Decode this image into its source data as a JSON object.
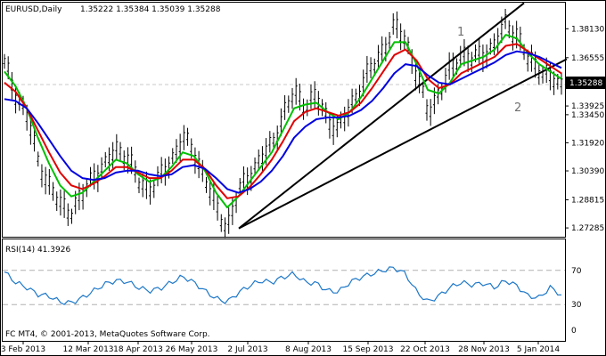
{
  "header": {
    "symbol": "EURUSD,Daily",
    "ohlc": "1.35222 1.35384 1.35039 1.35288"
  },
  "rsi": {
    "title": "RSI(14) 41.3926",
    "levels": [
      "70",
      "30",
      "0"
    ]
  },
  "footer": {
    "copyright": "FC MT4, © 2001-2013, MetaQuotes Software Corp."
  },
  "price_axis": {
    "ticks": [
      "1.38130",
      "1.36555",
      "1.33925",
      "1.33450",
      "1.31920",
      "1.30390",
      "1.28815",
      "1.27285"
    ],
    "current_price": "1.35288"
  },
  "annotations": {
    "wave_1": "1",
    "wave_2": "2"
  },
  "colors": {
    "price_bars": "#000000",
    "ma_green": "#00c000",
    "ma_red": "#e00000",
    "ma_blue": "#0000e0",
    "rsi_line": "#1e78c8",
    "trendline": "#000000",
    "price_label_bg": "#000000"
  },
  "chart_data": [
    {
      "type": "line",
      "title": "EURUSD,Daily",
      "x_ticks": [
        "3 Feb 2013",
        "12 Mar 2013",
        "18 Apr 2013",
        "26 May 2013",
        "2 Jul 2013",
        "8 Aug 2013",
        "15 Sep 2013",
        "22 Oct 2013",
        "28 Nov 2013",
        "5 Jan 2014"
      ],
      "y_ticks": [
        1.3813,
        1.36555,
        1.33925,
        1.3345,
        1.3192,
        1.3039,
        1.28815,
        1.27285
      ],
      "ylim": [
        1.2695,
        1.3955
      ],
      "close_path": [
        1.362,
        1.346,
        1.334,
        1.31,
        1.296,
        1.285,
        1.282,
        1.29,
        1.302,
        1.306,
        1.316,
        1.312,
        1.298,
        1.294,
        1.3,
        1.31,
        1.322,
        1.314,
        1.3,
        1.283,
        1.273,
        1.292,
        1.302,
        1.31,
        1.318,
        1.334,
        1.346,
        1.34,
        1.344,
        1.332,
        1.326,
        1.338,
        1.35,
        1.36,
        1.37,
        1.382,
        1.376,
        1.356,
        1.336,
        1.346,
        1.358,
        1.368,
        1.364,
        1.368,
        1.372,
        1.384,
        1.378,
        1.364,
        1.36,
        1.354,
        1.35
      ],
      "series": [
        {
          "values": [
            1.358,
            1.35,
            1.338,
            1.322,
            1.308,
            1.296,
            1.29,
            1.292,
            1.298,
            1.304,
            1.31,
            1.308,
            1.302,
            1.298,
            1.3,
            1.306,
            1.314,
            1.312,
            1.304,
            1.292,
            1.284,
            1.29,
            1.298,
            1.306,
            1.314,
            1.326,
            1.338,
            1.34,
            1.341,
            1.336,
            1.332,
            1.336,
            1.344,
            1.354,
            1.364,
            1.374,
            1.374,
            1.362,
            1.348,
            1.346,
            1.352,
            1.362,
            1.364,
            1.366,
            1.37,
            1.378,
            1.376,
            1.368,
            1.362,
            1.358,
            1.354
          ]
        },
        {
          "values": [
            1.352,
            1.347,
            1.338,
            1.326,
            1.314,
            1.303,
            1.296,
            1.294,
            1.297,
            1.301,
            1.306,
            1.306,
            1.303,
            1.3,
            1.3,
            1.304,
            1.31,
            1.31,
            1.305,
            1.296,
            1.289,
            1.29,
            1.295,
            1.302,
            1.31,
            1.32,
            1.331,
            1.336,
            1.338,
            1.336,
            1.334,
            1.336,
            1.341,
            1.349,
            1.358,
            1.367,
            1.37,
            1.364,
            1.354,
            1.349,
            1.351,
            1.357,
            1.36,
            1.363,
            1.366,
            1.372,
            1.373,
            1.369,
            1.365,
            1.361,
            1.357
          ]
        },
        {
          "values": [
            1.343,
            1.342,
            1.338,
            1.33,
            1.321,
            1.312,
            1.304,
            1.3,
            1.299,
            1.3,
            1.303,
            1.304,
            1.304,
            1.302,
            1.301,
            1.302,
            1.306,
            1.307,
            1.305,
            1.3,
            1.294,
            1.292,
            1.294,
            1.298,
            1.304,
            1.312,
            1.322,
            1.328,
            1.332,
            1.333,
            1.333,
            1.334,
            1.337,
            1.342,
            1.349,
            1.357,
            1.362,
            1.361,
            1.356,
            1.352,
            1.351,
            1.354,
            1.357,
            1.36,
            1.363,
            1.367,
            1.369,
            1.368,
            1.366,
            1.363,
            1.36
          ]
        }
      ],
      "trendlines": [
        {
          "from": {
            "x": "2 Jul 2013",
            "y": 1.2726
          },
          "to": {
            "x": "5 Jan 2014",
            "y": 1.3953
          }
        },
        {
          "from": {
            "x": "2 Jul 2013",
            "y": 1.2726
          },
          "to": {
            "x": "5 Jan 2014",
            "y": 1.3648
          }
        }
      ],
      "annotations": [
        {
          "text": "1",
          "x": "28 Nov 2013",
          "y": 1.3813
        },
        {
          "text": "2",
          "x": "5 Jan 2014",
          "y": 1.3345
        }
      ]
    },
    {
      "type": "line",
      "title": "RSI(14) 41.3926",
      "ylim": [
        0,
        100
      ],
      "y_ticks": [
        70,
        30,
        0
      ],
      "reference_levels": [
        70,
        30
      ],
      "series": [
        {
          "values": [
            68,
            56,
            50,
            42,
            40,
            33,
            32,
            38,
            46,
            54,
            58,
            57,
            50,
            46,
            49,
            56,
            63,
            56,
            46,
            37,
            33,
            44,
            52,
            58,
            56,
            62,
            66,
            56,
            55,
            46,
            45,
            56,
            62,
            66,
            70,
            73,
            66,
            45,
            33,
            40,
            50,
            56,
            53,
            55,
            50,
            58,
            52,
            40,
            38,
            50,
            41.3926
          ]
        }
      ]
    }
  ]
}
